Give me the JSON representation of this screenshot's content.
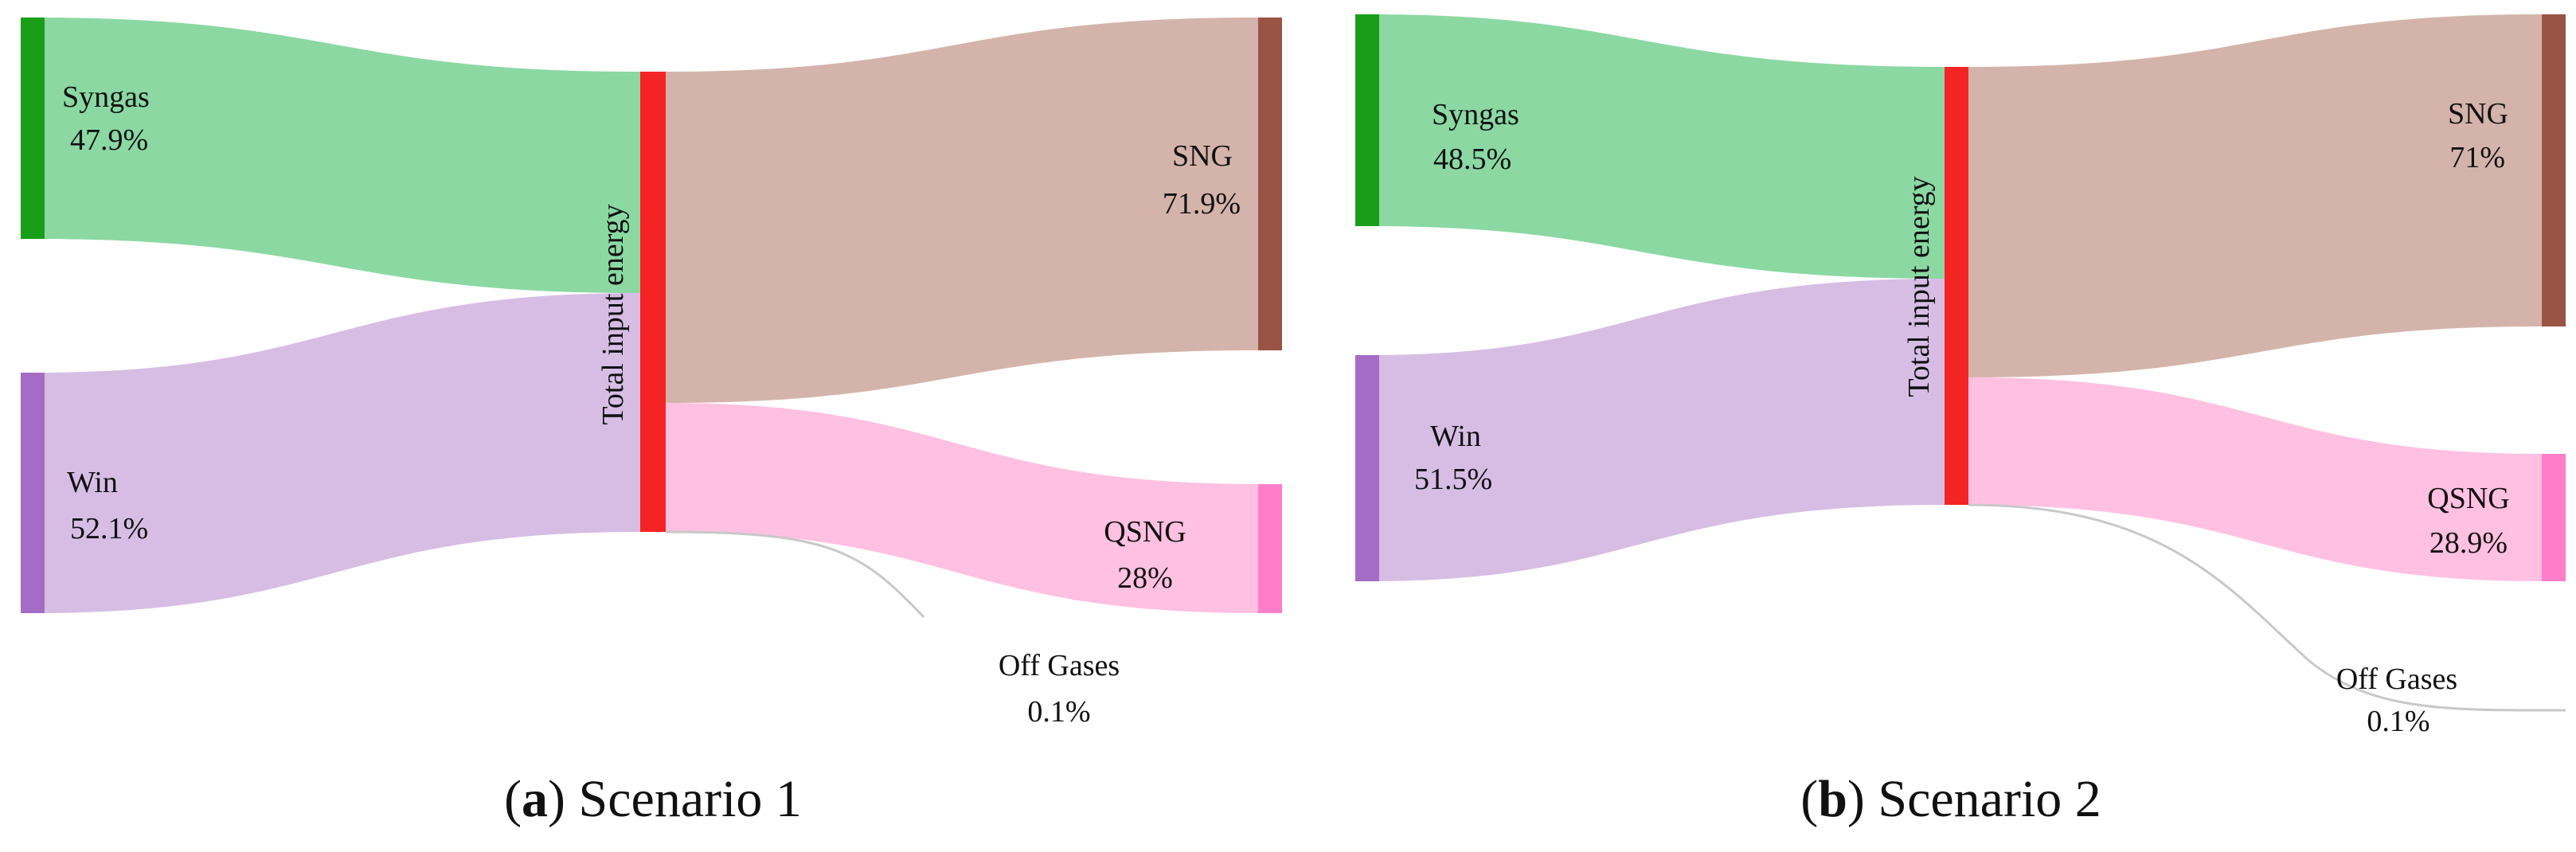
{
  "colors": {
    "syngas_node": "#1a9e1a",
    "syngas_link": "#8bd8a3",
    "win_node": "#a46cc4",
    "win_link": "#d7bde4",
    "total_node": "#f52424",
    "sng_node": "#9a5446",
    "sng_link": "#d4b4aa",
    "qsng_node": "#ff7ec9",
    "qsng_link": "#ffc0e2",
    "offgas_link": "#c8c8c8"
  },
  "panels": [
    {
      "caption_letter": "a",
      "caption_text": "Scenario 1",
      "nodes": {
        "syngas": {
          "name": "Syngas",
          "value": "47.9%"
        },
        "win": {
          "name": "Win",
          "value": "52.1%"
        },
        "total": {
          "name": "Total input energy"
        },
        "sng": {
          "name": "SNG",
          "value": "71.9%"
        },
        "qsng": {
          "name": "QSNG",
          "value": "28%"
        },
        "offgas": {
          "name": "Off Gases",
          "value": "0.1%"
        }
      }
    },
    {
      "caption_letter": "b",
      "caption_text": "Scenario 2",
      "nodes": {
        "syngas": {
          "name": "Syngas",
          "value": "48.5%"
        },
        "win": {
          "name": "Win",
          "value": "51.5%"
        },
        "total": {
          "name": "Total input energy"
        },
        "sng": {
          "name": "SNG",
          "value": "71%"
        },
        "qsng": {
          "name": "QSNG",
          "value": "28.9%"
        },
        "offgas": {
          "name": "Off Gases",
          "value": "0.1%"
        }
      }
    }
  ]
}
